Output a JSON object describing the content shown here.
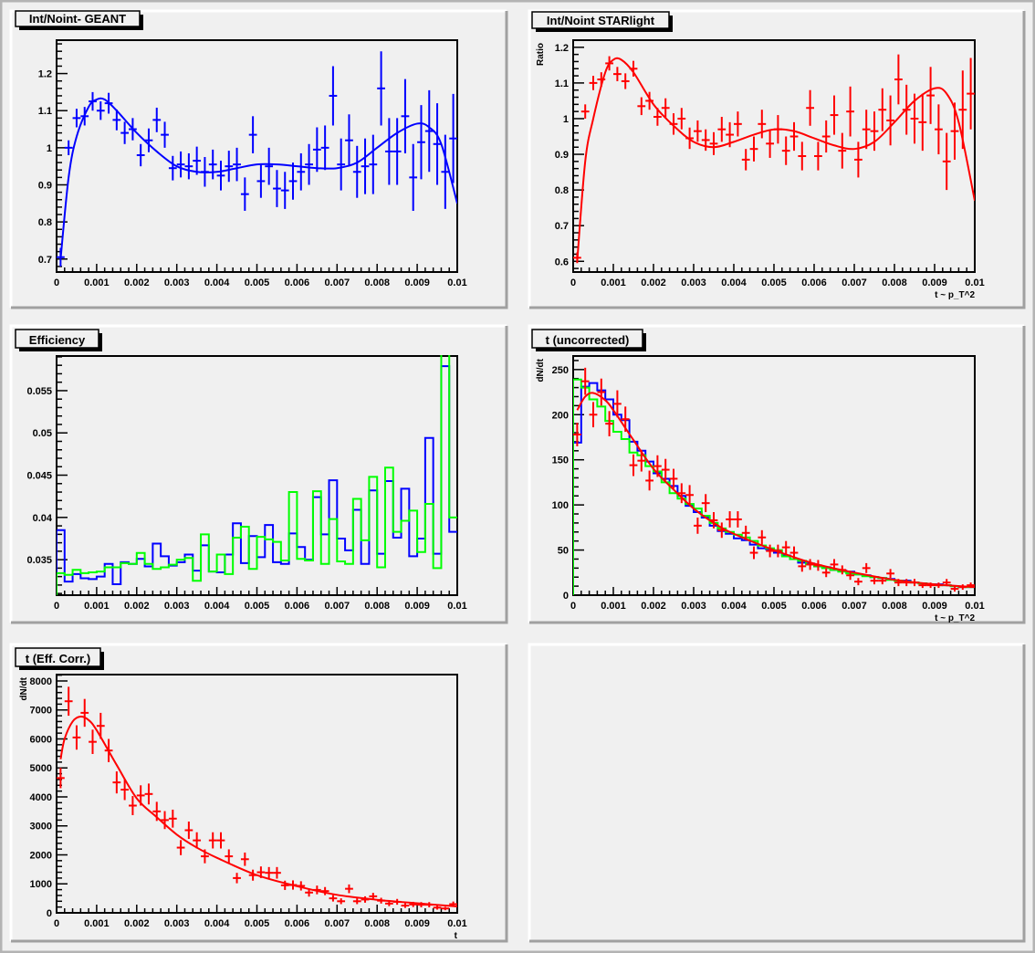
{
  "colors": {
    "blue": "#0000ff",
    "red": "#ff0000",
    "green": "#00ff00",
    "pad": "#f0f0f0"
  },
  "chart_data": [
    {
      "type": "scatter",
      "title": "Int/Noint- GEANT",
      "xlabel": "",
      "ylabel": "",
      "xlim": [
        0,
        0.01
      ],
      "ylim": [
        0.665,
        1.29
      ],
      "xticks": [
        "0",
        "0.001",
        "0.002",
        "0.003",
        "0.004",
        "0.005",
        "0.006",
        "0.007",
        "0.008",
        "0.009",
        "0.01"
      ],
      "yticks": [
        "0.7",
        "0.8",
        "0.9",
        "1",
        "1.1",
        "1.2"
      ],
      "grid": false,
      "nbins": 50,
      "series": [
        {
          "name": "ratio",
          "kind": "points",
          "color": "#0000ff",
          "values": [
            0.705,
            1.0,
            1.08,
            1.085,
            1.125,
            1.1,
            1.12,
            1.075,
            1.04,
            1.05,
            0.98,
            1.02,
            1.075,
            1.035,
            0.945,
            0.955,
            0.95,
            0.965,
            0.935,
            0.955,
            0.925,
            0.95,
            0.955,
            0.875,
            1.035,
            0.91,
            0.95,
            0.89,
            0.885,
            0.91,
            0.935,
            0.955,
            0.995,
            1.0,
            1.14,
            0.955,
            1.02,
            0.935,
            0.95,
            0.955,
            1.16,
            0.99,
            0.99,
            1.085,
            0.92,
            1.015,
            1.045,
            1.01,
            0.935,
            1.025
          ],
          "errors": [
            0.025,
            0.02,
            0.025,
            0.025,
            0.025,
            0.025,
            0.028,
            0.028,
            0.03,
            0.03,
            0.03,
            0.032,
            0.033,
            0.035,
            0.033,
            0.035,
            0.035,
            0.038,
            0.04,
            0.04,
            0.04,
            0.042,
            0.045,
            0.045,
            0.05,
            0.045,
            0.05,
            0.05,
            0.05,
            0.05,
            0.05,
            0.055,
            0.06,
            0.06,
            0.08,
            0.07,
            0.07,
            0.07,
            0.075,
            0.08,
            0.1,
            0.09,
            0.09,
            0.1,
            0.09,
            0.1,
            0.11,
            0.11,
            0.1,
            0.12
          ]
        },
        {
          "name": "fit",
          "kind": "curve",
          "color": "#0000ff",
          "x": [
            0.0001,
            0.0003,
            0.0005,
            0.0008,
            0.001,
            0.0012,
            0.0015,
            0.002,
            0.0025,
            0.003,
            0.0035,
            0.004,
            0.0045,
            0.005,
            0.0055,
            0.006,
            0.0065,
            0.007,
            0.0075,
            0.008,
            0.0085,
            0.009,
            0.0093,
            0.0096,
            0.01
          ],
          "y": [
            0.7,
            0.92,
            1.03,
            1.11,
            1.13,
            1.13,
            1.1,
            1.04,
            0.99,
            0.95,
            0.935,
            0.935,
            0.945,
            0.955,
            0.955,
            0.95,
            0.945,
            0.945,
            0.96,
            1.0,
            1.04,
            1.065,
            1.055,
            1.01,
            0.85
          ]
        }
      ]
    },
    {
      "type": "scatter",
      "title": "Int/Noint STARlight",
      "xlabel": "t ~ p_T^2",
      "ylabel": "Ratio",
      "xlim": [
        0,
        0.01
      ],
      "ylim": [
        0.57,
        1.22
      ],
      "xticks": [
        "0",
        "0.001",
        "0.002",
        "0.003",
        "0.004",
        "0.005",
        "0.006",
        "0.007",
        "0.008",
        "0.009",
        "0.01"
      ],
      "yticks": [
        "0.6",
        "0.7",
        "0.8",
        "0.9",
        "1",
        "1.1",
        "1.2"
      ],
      "grid": false,
      "nbins": 50,
      "series": [
        {
          "name": "ratio",
          "kind": "points",
          "color": "#ff0000",
          "values": [
            0.61,
            1.02,
            1.1,
            1.11,
            1.155,
            1.125,
            1.105,
            1.14,
            1.035,
            1.05,
            1.005,
            1.03,
            0.985,
            1.0,
            0.945,
            0.965,
            0.94,
            0.93,
            0.97,
            0.955,
            0.985,
            0.885,
            0.915,
            0.985,
            0.93,
            0.97,
            0.91,
            0.95,
            0.895,
            1.03,
            0.895,
            0.95,
            1.01,
            0.91,
            1.02,
            0.885,
            0.97,
            0.965,
            1.025,
            0.995,
            1.11,
            1.025,
            1.0,
            0.99,
            1.065,
            0.97,
            0.88,
            0.965,
            1.025,
            1.07
          ],
          "errors": [
            0.015,
            0.02,
            0.02,
            0.02,
            0.02,
            0.02,
            0.022,
            0.022,
            0.025,
            0.025,
            0.025,
            0.027,
            0.03,
            0.03,
            0.03,
            0.03,
            0.03,
            0.032,
            0.035,
            0.035,
            0.035,
            0.03,
            0.035,
            0.04,
            0.04,
            0.04,
            0.04,
            0.04,
            0.04,
            0.05,
            0.04,
            0.045,
            0.055,
            0.05,
            0.07,
            0.05,
            0.055,
            0.055,
            0.06,
            0.07,
            0.07,
            0.07,
            0.07,
            0.08,
            0.08,
            0.07,
            0.08,
            0.08,
            0.11,
            0.1
          ]
        },
        {
          "name": "fit",
          "kind": "curve",
          "color": "#ff0000",
          "x": [
            0.0001,
            0.0003,
            0.0005,
            0.0008,
            0.001,
            0.0012,
            0.0015,
            0.002,
            0.0025,
            0.003,
            0.0035,
            0.004,
            0.0045,
            0.005,
            0.0055,
            0.006,
            0.0065,
            0.007,
            0.0075,
            0.008,
            0.0085,
            0.009,
            0.0093,
            0.0096,
            0.01
          ],
          "y": [
            0.6,
            0.88,
            1.0,
            1.13,
            1.165,
            1.165,
            1.13,
            1.04,
            0.98,
            0.935,
            0.92,
            0.935,
            0.955,
            0.97,
            0.965,
            0.945,
            0.925,
            0.915,
            0.935,
            0.99,
            1.05,
            1.085,
            1.07,
            0.99,
            0.77
          ]
        }
      ]
    },
    {
      "type": "step",
      "title": "Efficiency",
      "xlabel": "",
      "ylabel": "",
      "xlim": [
        0,
        0.01
      ],
      "ylim": [
        0.0308,
        0.0591
      ],
      "xticks": [
        "0",
        "0.001",
        "0.002",
        "0.003",
        "0.004",
        "0.005",
        "0.006",
        "0.007",
        "0.008",
        "0.009",
        "0.01"
      ],
      "yticks": [
        "0.035",
        "0.04",
        "0.045",
        "0.05",
        "0.055"
      ],
      "grid": false,
      "nbins": 50,
      "series": [
        {
          "name": "efficiency (blue)",
          "kind": "hist",
          "color": "#0000ff",
          "values": [
            0.0385,
            0.0324,
            0.0333,
            0.0328,
            0.0327,
            0.033,
            0.0345,
            0.0321,
            0.0347,
            0.0345,
            0.0351,
            0.0342,
            0.0369,
            0.0354,
            0.0343,
            0.0347,
            0.0356,
            0.0337,
            0.0367,
            0.0336,
            0.0335,
            0.0356,
            0.0393,
            0.0346,
            0.0378,
            0.0353,
            0.0391,
            0.0347,
            0.0345,
            0.0381,
            0.0365,
            0.035,
            0.0424,
            0.038,
            0.0444,
            0.0375,
            0.0361,
            0.0409,
            0.0345,
            0.0432,
            0.0357,
            0.0443,
            0.0376,
            0.0434,
            0.0354,
            0.0375,
            0.0494,
            0.0357,
            0.0579,
            0.0383
          ]
        },
        {
          "name": "efficiency (green)",
          "kind": "hist",
          "color": "#00ff00",
          "values": [
            0.0334,
            0.0332,
            0.0338,
            0.0334,
            0.0335,
            0.0336,
            0.0341,
            0.0341,
            0.0346,
            0.0345,
            0.0358,
            0.0345,
            0.0339,
            0.0341,
            0.0344,
            0.035,
            0.0352,
            0.0325,
            0.038,
            0.0336,
            0.0356,
            0.0333,
            0.0376,
            0.0389,
            0.0339,
            0.0377,
            0.0374,
            0.0371,
            0.0349,
            0.043,
            0.0351,
            0.0349,
            0.0431,
            0.0345,
            0.0398,
            0.0348,
            0.0345,
            0.0422,
            0.0373,
            0.0448,
            0.0341,
            0.0459,
            0.0383,
            0.0396,
            0.0408,
            0.0359,
            0.0416,
            0.034,
            0.06,
            0.04
          ]
        }
      ]
    },
    {
      "type": "scatter",
      "title": "t (uncorrected)",
      "xlabel": "t ~ p_T^2",
      "ylabel": "dN/dt",
      "xlim": [
        0,
        0.01
      ],
      "ylim": [
        0,
        265
      ],
      "xticks": [
        "0",
        "0.001",
        "0.002",
        "0.003",
        "0.004",
        "0.005",
        "0.006",
        "0.007",
        "0.008",
        "0.009",
        "0.01"
      ],
      "yticks": [
        "0",
        "50",
        "100",
        "150",
        "200",
        "250"
      ],
      "grid": false,
      "nbins": 50,
      "series": [
        {
          "name": "blue histogram",
          "kind": "hist",
          "color": "#0000ff",
          "values": [
            169,
            231,
            235,
            227,
            217,
            200,
            194,
            170,
            160,
            148,
            135,
            129,
            121,
            110,
            99,
            92,
            86,
            77,
            71,
            68,
            63,
            61,
            56,
            52,
            51,
            47,
            44,
            40,
            36,
            35,
            32,
            31,
            28,
            27,
            26,
            23,
            22,
            20,
            19,
            18,
            16,
            16,
            14,
            13,
            12,
            12,
            11,
            10,
            9,
            9
          ]
        },
        {
          "name": "green histogram",
          "kind": "hist",
          "color": "#00ff00",
          "values": [
            239,
            230,
            217,
            209,
            193,
            181,
            173,
            158,
            155,
            143,
            137,
            125,
            113,
            107,
            101,
            96,
            88,
            80,
            74,
            70,
            67,
            64,
            60,
            55,
            52,
            50,
            43,
            40,
            38,
            34,
            32,
            30,
            28,
            26,
            24,
            23,
            21,
            20,
            19,
            17,
            16,
            15,
            14,
            13,
            12,
            11,
            11,
            10,
            9,
            9
          ]
        },
        {
          "name": "data",
          "kind": "points",
          "color": "#ff0000",
          "values": [
            178,
            237,
            200,
            225,
            190,
            212,
            195,
            144,
            149,
            127,
            143,
            139,
            129,
            113,
            111,
            77,
            102,
            83,
            72,
            84,
            84,
            69,
            47,
            64,
            49,
            49,
            53,
            47,
            32,
            34,
            33,
            25,
            34,
            28,
            22,
            15,
            30,
            16,
            16,
            24,
            14,
            14,
            14,
            11,
            11,
            11,
            14,
            7,
            9,
            11
          ],
          "errors": [
            13,
            15,
            14,
            15,
            14,
            15,
            14,
            12,
            12,
            11,
            12,
            12,
            11,
            11,
            11,
            9,
            10,
            9,
            8.5,
            9,
            9,
            8,
            7,
            8,
            7,
            7,
            7,
            7,
            6,
            6,
            6,
            5,
            6,
            5,
            5,
            4,
            5.5,
            4,
            4,
            5,
            4,
            4,
            4,
            3,
            3,
            3,
            4,
            3,
            3,
            3
          ]
        },
        {
          "name": "fit",
          "kind": "curve",
          "color": "#ff0000",
          "x": [
            0.0001,
            0.0003,
            0.0005,
            0.0008,
            0.001,
            0.0015,
            0.002,
            0.0025,
            0.003,
            0.0035,
            0.004,
            0.005,
            0.006,
            0.007,
            0.008,
            0.009,
            0.01
          ],
          "y": [
            205,
            220,
            224,
            216,
            205,
            172,
            140,
            117,
            96,
            80,
            68,
            50,
            35,
            25,
            17,
            12,
            9
          ]
        }
      ]
    },
    {
      "type": "scatter",
      "title": "t (Eff. Corr.)",
      "xlabel": "t",
      "ylabel": "dN/dt",
      "xlim": [
        0,
        0.01
      ],
      "ylim": [
        0,
        8220
      ],
      "xticks": [
        "0",
        "0.001",
        "0.002",
        "0.003",
        "0.004",
        "0.005",
        "0.006",
        "0.007",
        "0.008",
        "0.009",
        "0.01"
      ],
      "yticks": [
        "0",
        "1000",
        "2000",
        "3000",
        "4000",
        "5000",
        "6000",
        "7000",
        "8000"
      ],
      "grid": false,
      "nbins": 50,
      "series": [
        {
          "name": "data",
          "kind": "points",
          "color": "#ff0000",
          "values": [
            4650,
            7300,
            6050,
            6900,
            5900,
            6450,
            5600,
            4500,
            4250,
            3700,
            4050,
            4100,
            3500,
            3200,
            3250,
            2250,
            2850,
            2500,
            1950,
            2500,
            2500,
            1950,
            1200,
            1850,
            1300,
            1400,
            1380,
            1380,
            950,
            960,
            930,
            700,
            790,
            750,
            500,
            400,
            830,
            400,
            460,
            570,
            420,
            320,
            380,
            250,
            290,
            280,
            280,
            180,
            150,
            300
          ],
          "errors": [
            350,
            500,
            420,
            480,
            420,
            450,
            400,
            380,
            360,
            330,
            350,
            360,
            330,
            310,
            310,
            260,
            300,
            280,
            240,
            280,
            280,
            240,
            180,
            230,
            190,
            200,
            200,
            200,
            160,
            160,
            160,
            140,
            150,
            140,
            110,
            100,
            150,
            100,
            110,
            120,
            100,
            90,
            100,
            80,
            90,
            90,
            90,
            70,
            60,
            90
          ]
        },
        {
          "name": "fit",
          "kind": "curve",
          "color": "#ff0000",
          "x": [
            0.0001,
            0.0002,
            0.0004,
            0.0006,
            0.0008,
            0.001,
            0.0015,
            0.002,
            0.0025,
            0.003,
            0.0035,
            0.004,
            0.005,
            0.006,
            0.007,
            0.008,
            0.009,
            0.01
          ],
          "y": [
            5300,
            6000,
            6600,
            6770,
            6650,
            6300,
            5100,
            3950,
            3300,
            2700,
            2250,
            1900,
            1300,
            920,
            620,
            450,
            330,
            220
          ]
        }
      ]
    }
  ]
}
